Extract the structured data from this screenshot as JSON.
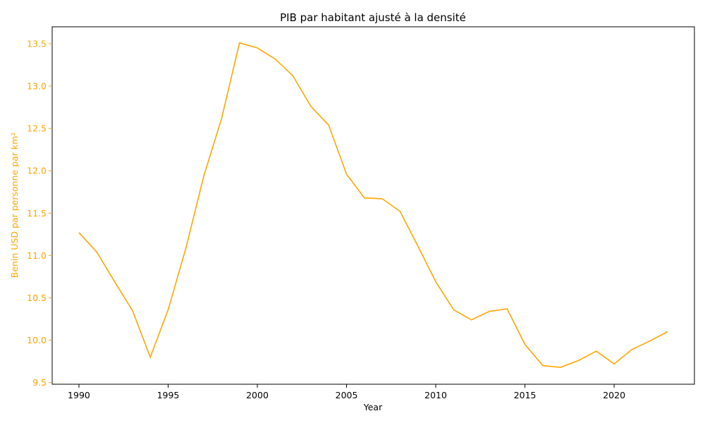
{
  "chart_data": {
    "type": "line",
    "title": "PIB par habitant ajusté à la densité",
    "xlabel": "Year",
    "ylabel": "Benin USD par personne par km²",
    "xlim": [
      1988.5,
      2024.5
    ],
    "ylim": [
      9.48,
      13.7
    ],
    "xticks": [
      1990,
      1995,
      2000,
      2005,
      2010,
      2015,
      2020
    ],
    "yticks": [
      9.5,
      10.0,
      10.5,
      11.0,
      11.5,
      12.0,
      12.5,
      13.0,
      13.5
    ],
    "grid": false,
    "colors": {
      "line": "#FFA500",
      "axis": "#000000",
      "ylabel_and_yticks": "#FFA500"
    },
    "x": [
      1990,
      1991,
      1992,
      1993,
      1994,
      1995,
      1996,
      1997,
      1998,
      1999,
      2000,
      2001,
      2002,
      2003,
      2004,
      2005,
      2006,
      2007,
      2008,
      2009,
      2010,
      2011,
      2012,
      2013,
      2014,
      2015,
      2016,
      2017,
      2018,
      2019,
      2020,
      2021,
      2022,
      2023
    ],
    "series": [
      {
        "values": [
          11.27,
          11.04,
          10.69,
          10.35,
          9.8,
          10.36,
          11.09,
          11.94,
          12.62,
          13.51,
          13.45,
          13.32,
          13.12,
          12.76,
          12.54,
          11.96,
          11.68,
          11.67,
          11.52,
          11.11,
          10.69,
          10.36,
          10.24,
          10.34,
          10.37,
          9.95,
          9.7,
          9.68,
          9.76,
          9.87,
          9.72,
          9.89,
          9.99,
          10.1
        ]
      }
    ]
  }
}
